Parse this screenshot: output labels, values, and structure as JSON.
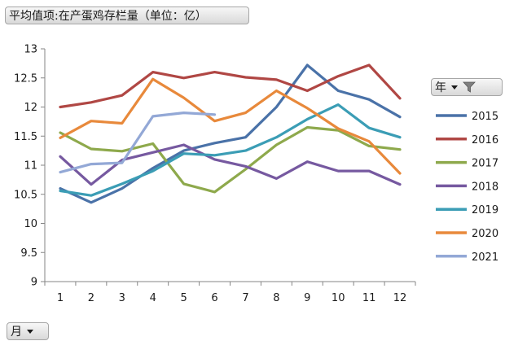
{
  "title_field": "平均值项:在产蛋鸡存栏量（单位：亿）",
  "legend_field": "年",
  "axis_field": "月",
  "colors": {
    "2015": "#4a72a8",
    "2016": "#b04744",
    "2017": "#8ea94c",
    "2018": "#7659a0",
    "2019": "#3b9db5",
    "2020": "#e8893b",
    "2021": "#93a8d6"
  },
  "chart_data": {
    "type": "line",
    "categories": [
      "1",
      "2",
      "3",
      "4",
      "5",
      "6",
      "7",
      "8",
      "9",
      "10",
      "11",
      "12"
    ],
    "x_tick_labels": [
      "1",
      "2",
      "3",
      "4",
      "5",
      "6",
      "7",
      "8",
      "9",
      "10",
      "11",
      "12"
    ],
    "y_tick_labels": [
      "9",
      "9.5",
      "10",
      "10.5",
      "11",
      "11.5",
      "12",
      "12.5",
      "13"
    ],
    "ylim": [
      9,
      13
    ],
    "y_step": 0.5,
    "grid": false,
    "legend_position": "right",
    "series": [
      {
        "name": "2015",
        "values": [
          10.6,
          10.36,
          10.6,
          10.95,
          11.25,
          11.38,
          11.48,
          12.0,
          12.72,
          12.28,
          12.13,
          11.83
        ]
      },
      {
        "name": "2016",
        "values": [
          12.0,
          12.08,
          12.2,
          12.6,
          12.5,
          12.6,
          12.51,
          12.47,
          12.28,
          12.53,
          12.72,
          12.15
        ]
      },
      {
        "name": "2017",
        "values": [
          11.56,
          11.28,
          11.24,
          11.37,
          10.68,
          10.54,
          10.93,
          11.35,
          11.65,
          11.6,
          11.33,
          11.27
        ]
      },
      {
        "name": "2018",
        "values": [
          11.15,
          10.67,
          11.09,
          11.22,
          11.35,
          11.1,
          10.98,
          10.77,
          11.06,
          10.9,
          10.9,
          10.67
        ]
      },
      {
        "name": "2019",
        "values": [
          10.56,
          10.48,
          10.68,
          10.9,
          11.2,
          11.17,
          11.25,
          11.48,
          11.79,
          12.04,
          11.64,
          11.48
        ]
      },
      {
        "name": "2020",
        "values": [
          11.47,
          11.76,
          11.72,
          12.48,
          12.16,
          11.76,
          11.9,
          12.28,
          11.98,
          11.63,
          11.41,
          10.86
        ]
      },
      {
        "name": "2021",
        "values": [
          10.88,
          11.02,
          11.04,
          11.84,
          11.9,
          11.87,
          null,
          null,
          null,
          null,
          null,
          null
        ]
      }
    ]
  }
}
